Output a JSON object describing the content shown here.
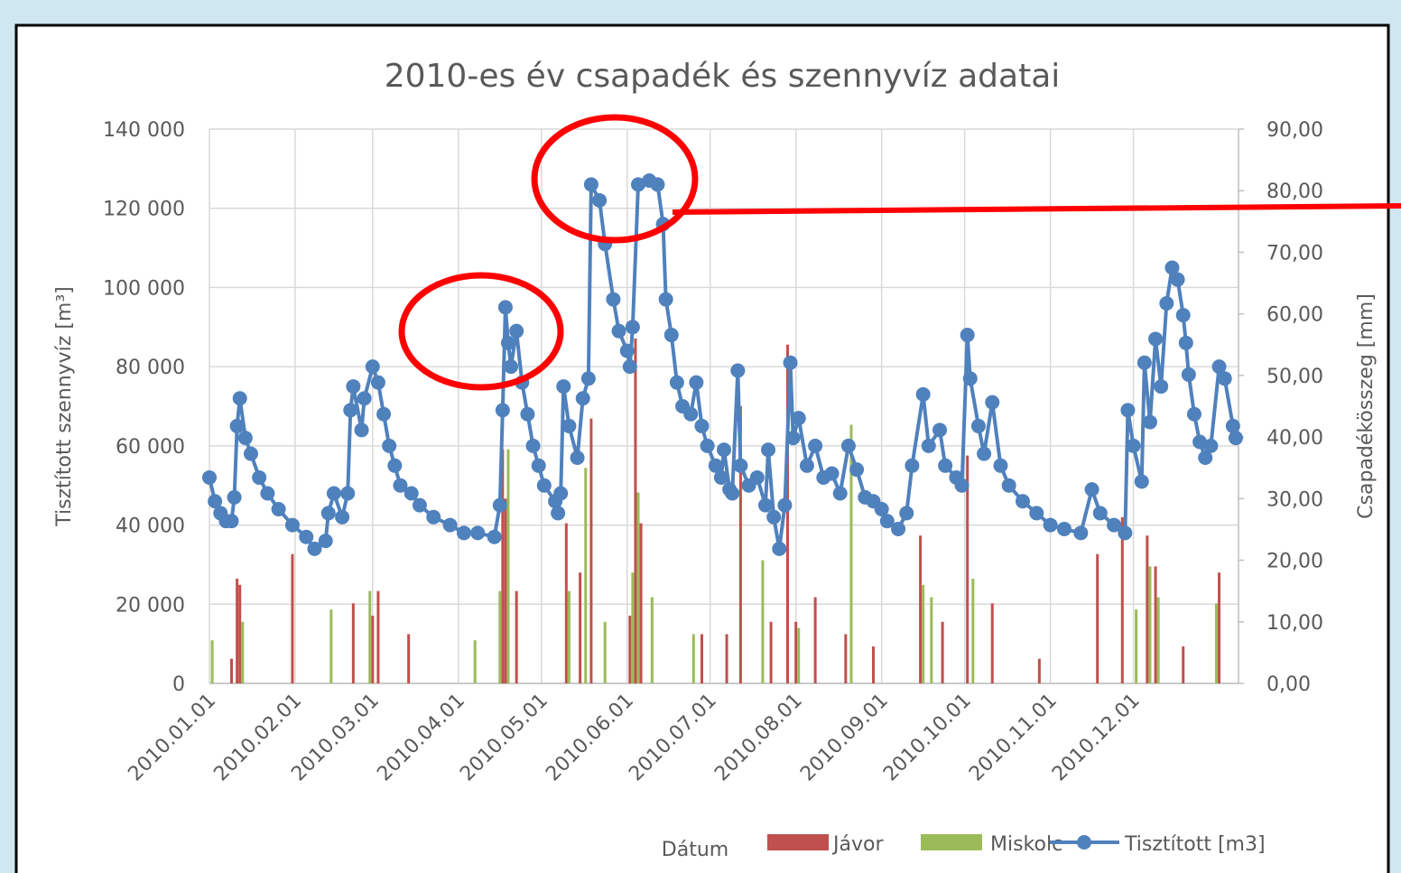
{
  "chart_data": {
    "type": "combo",
    "title": "2010-es év csapadék és szennyvíz adatai",
    "x_label": "Dátum",
    "y_label": "Tisztított szennyvíz [m³]",
    "y2_label": "Csapadékösszeg [mm]",
    "xlim": [
      0,
      372
    ],
    "xticks": [
      {
        "value": 0,
        "label": "2010.01.01"
      },
      {
        "value": 31,
        "label": "2010.02.01"
      },
      {
        "value": 59,
        "label": "2010.03.01"
      },
      {
        "value": 90,
        "label": "2010.04.01"
      },
      {
        "value": 120,
        "label": "2010.05.01"
      },
      {
        "value": 151,
        "label": "2010.06.01"
      },
      {
        "value": 181,
        "label": "2010.07.01"
      },
      {
        "value": 212,
        "label": "2010.08.01"
      },
      {
        "value": 243,
        "label": "2010.09.01"
      },
      {
        "value": 273,
        "label": "2010.10.01"
      },
      {
        "value": 304,
        "label": "2010.11.01"
      },
      {
        "value": 334,
        "label": "2010.12.01"
      }
    ],
    "ylim": [
      0,
      140000
    ],
    "yticks": [
      0,
      {
        "value": 20000,
        "label": "20 000"
      },
      {
        "value": 40000,
        "label": "40 000"
      },
      {
        "value": 60000,
        "label": "60 000"
      },
      {
        "value": 80000,
        "label": "80 000"
      },
      {
        "value": 100000,
        "label": "100 000"
      },
      {
        "value": 120000,
        "label": "120 000"
      },
      {
        "value": 140000,
        "label": "140 000"
      }
    ],
    "y2lim": [
      0,
      90
    ],
    "y2ticks": [
      {
        "value": 0,
        "label": "0,00"
      },
      {
        "value": 10,
        "label": "10,00"
      },
      {
        "value": 20,
        "label": "20,00"
      },
      {
        "value": 30,
        "label": "30,00"
      },
      {
        "value": 40,
        "label": "40,00"
      },
      {
        "value": 50,
        "label": "50,00"
      },
      {
        "value": 60,
        "label": "60,00"
      },
      {
        "value": 70,
        "label": "70,00"
      },
      {
        "value": 80,
        "label": "80,00"
      },
      {
        "value": 90,
        "label": "90,00"
      }
    ],
    "grid": true,
    "legend": "bottom",
    "series": [
      {
        "name": "Jávor",
        "type": "bar",
        "axis": "y2",
        "color": "#c0504d",
        "x": [
          8,
          10,
          11,
          30,
          52,
          59,
          61,
          72,
          106,
          107,
          111,
          129,
          134,
          138,
          152,
          154,
          156,
          178,
          187,
          192,
          203,
          209,
          212,
          219,
          230,
          240,
          257,
          265,
          274,
          283,
          300,
          321,
          330,
          339,
          342,
          352,
          365
        ],
        "values": [
          4,
          17,
          16,
          21,
          13,
          11,
          15,
          8,
          38,
          30,
          15,
          26,
          18,
          43,
          11,
          56,
          26,
          8,
          8,
          45,
          10,
          55,
          10,
          14,
          8,
          6,
          24,
          10,
          37,
          13,
          4,
          21,
          27,
          24,
          19,
          6,
          18
        ]
      },
      {
        "name": "Miskolc",
        "type": "bar",
        "axis": "y2",
        "color": "#9bbb59",
        "x": [
          1,
          12,
          44,
          58,
          96,
          105,
          108,
          130,
          136,
          143,
          153,
          155,
          160,
          175,
          200,
          213,
          232,
          258,
          261,
          276,
          335,
          340,
          343,
          364
        ],
        "values": [
          7,
          10,
          12,
          15,
          7,
          15,
          38,
          15,
          35,
          10,
          18,
          31,
          14,
          8,
          20,
          9,
          42,
          16,
          14,
          17,
          12,
          19,
          14,
          13
        ]
      },
      {
        "name": "Tisztított [m3]",
        "type": "line",
        "color": "#4f81bd",
        "x": [
          0,
          2,
          4,
          6,
          8,
          9,
          10,
          11,
          13,
          15,
          18,
          21,
          25,
          30,
          35,
          38,
          42,
          43,
          45,
          48,
          50,
          51,
          52,
          55,
          56,
          59,
          61,
          63,
          65,
          67,
          69,
          73,
          76,
          81,
          87,
          92,
          97,
          103,
          105,
          106,
          107,
          108,
          109,
          111,
          113,
          115,
          117,
          119,
          121,
          125,
          126,
          127,
          128,
          130,
          133,
          135,
          137,
          138,
          141,
          143,
          146,
          148,
          151,
          152,
          153,
          155,
          159,
          162,
          164,
          165,
          167,
          169,
          171,
          174,
          176,
          178,
          180,
          183,
          185,
          186,
          188,
          189,
          191,
          192,
          195,
          198,
          201,
          202,
          204,
          206,
          208,
          210,
          211,
          213,
          216,
          219,
          222,
          225,
          228,
          231,
          234,
          237,
          240,
          243,
          245,
          249,
          252,
          254,
          258,
          260,
          264,
          266,
          270,
          272,
          274,
          275,
          278,
          280,
          283,
          286,
          289,
          294,
          299,
          304,
          309,
          315,
          319,
          322,
          327,
          331,
          332,
          334,
          337,
          338,
          340,
          342,
          344,
          346,
          348,
          350,
          352,
          353,
          354,
          356,
          358,
          360,
          362,
          365,
          367,
          370,
          371
        ],
        "values": [
          52000,
          46000,
          43000,
          41000,
          41000,
          47000,
          65000,
          72000,
          62000,
          58000,
          52000,
          48000,
          44000,
          40000,
          37000,
          34000,
          36000,
          43000,
          48000,
          42000,
          48000,
          69000,
          75000,
          64000,
          72000,
          80000,
          76000,
          68000,
          60000,
          55000,
          50000,
          48000,
          45000,
          42000,
          40000,
          38000,
          38000,
          37000,
          45000,
          69000,
          95000,
          86000,
          80000,
          89000,
          76000,
          68000,
          60000,
          55000,
          50000,
          46000,
          43000,
          48000,
          75000,
          65000,
          57000,
          72000,
          77000,
          126000,
          122000,
          111000,
          97000,
          89000,
          84000,
          80000,
          90000,
          126000,
          127000,
          126000,
          116000,
          97000,
          88000,
          76000,
          70000,
          68000,
          76000,
          65000,
          60000,
          55000,
          52000,
          59000,
          49000,
          48000,
          79000,
          55000,
          50000,
          52000,
          45000,
          59000,
          42000,
          34000,
          45000,
          81000,
          62000,
          67000,
          55000,
          60000,
          52000,
          53000,
          48000,
          60000,
          54000,
          47000,
          46000,
          44000,
          41000,
          39000,
          43000,
          55000,
          73000,
          60000,
          64000,
          55000,
          52000,
          50000,
          88000,
          77000,
          65000,
          58000,
          71000,
          55000,
          50000,
          46000,
          43000,
          40000,
          39000,
          38000,
          49000,
          43000,
          40000,
          38000,
          69000,
          60000,
          51000,
          81000,
          66000,
          87000,
          75000,
          96000,
          105000,
          102000,
          93000,
          86000,
          78000,
          68000,
          61000,
          57000,
          60000,
          80000,
          77000,
          65000,
          62000
        ]
      }
    ]
  }
}
